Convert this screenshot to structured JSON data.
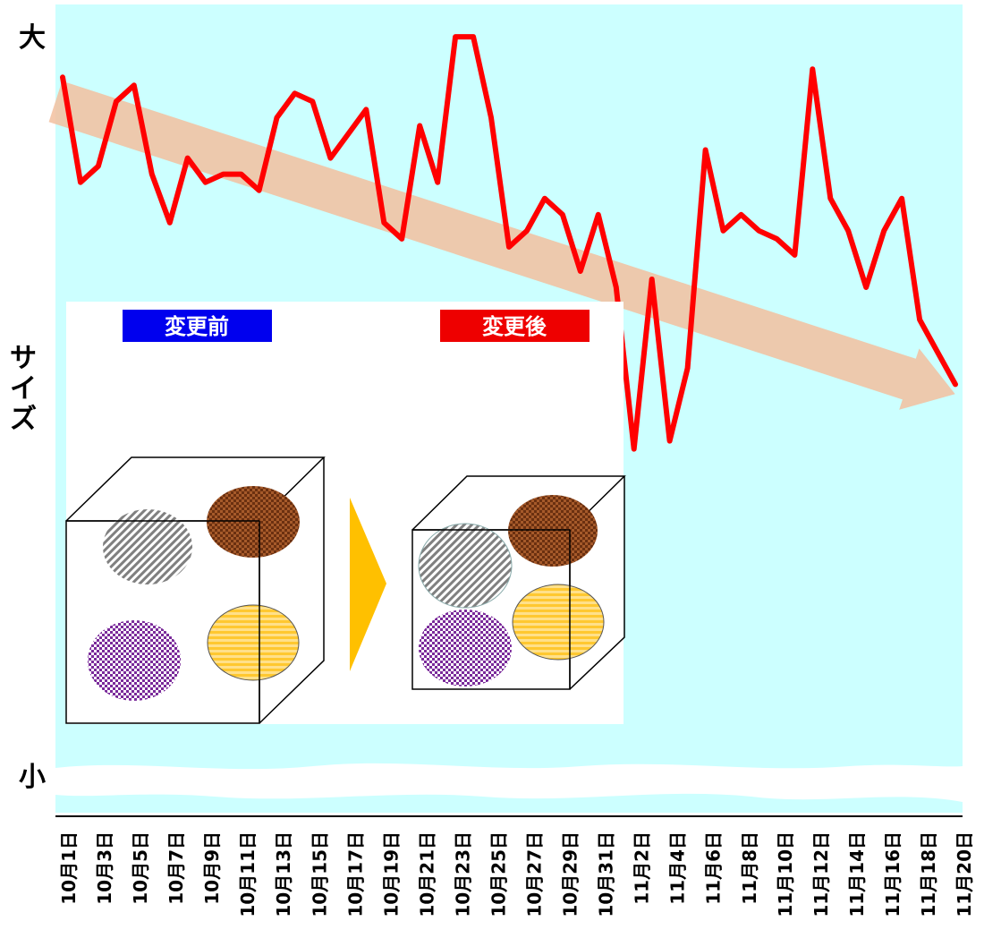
{
  "colors": {
    "plot_bg": "#ccffff",
    "line": "#ff0000",
    "trend_arrow": "#f2bf9f",
    "before_badge": "#0000ee",
    "after_badge": "#ee0000",
    "play_arrow": "#ffc000"
  },
  "labels": {
    "y_top": "大",
    "y_bottom": "小",
    "y_axis": "サイズ",
    "before": "変更前",
    "after": "変更後"
  },
  "chart_data": {
    "type": "line",
    "title": "",
    "xlabel": "",
    "ylabel": "サイズ",
    "ylim": [
      0,
      100
    ],
    "y_scale_labels": {
      "top": "大",
      "bottom": "小"
    },
    "x_tick_labels": [
      "10月1日",
      "10月3日",
      "10月5日",
      "10月7日",
      "10月9日",
      "10月11日",
      "10月13日",
      "10月15日",
      "10月17日",
      "10月19日",
      "10月21日",
      "10月23日",
      "10月25日",
      "10月27日",
      "10月29日",
      "10月31日",
      "11月2日",
      "11月4日",
      "11月6日",
      "11月8日",
      "11月10日",
      "11月12日",
      "11月14日",
      "11月16日",
      "11月18日",
      "11月20日"
    ],
    "series": [
      {
        "values": [
          91,
          78,
          80,
          88,
          90,
          79,
          73,
          81,
          78,
          79,
          79,
          77,
          86,
          89,
          88,
          81,
          84,
          87,
          73,
          71,
          85,
          78,
          96,
          96,
          86,
          70,
          72,
          76,
          74,
          67,
          74,
          65,
          45,
          66,
          46,
          55,
          82,
          72,
          74,
          72,
          71,
          69,
          92,
          76,
          72,
          65,
          72,
          76,
          61,
          57,
          53
        ]
      }
    ],
    "trend": {
      "start": 88,
      "end": 52,
      "shape": "arrow"
    },
    "grid": false,
    "legend": "none"
  }
}
